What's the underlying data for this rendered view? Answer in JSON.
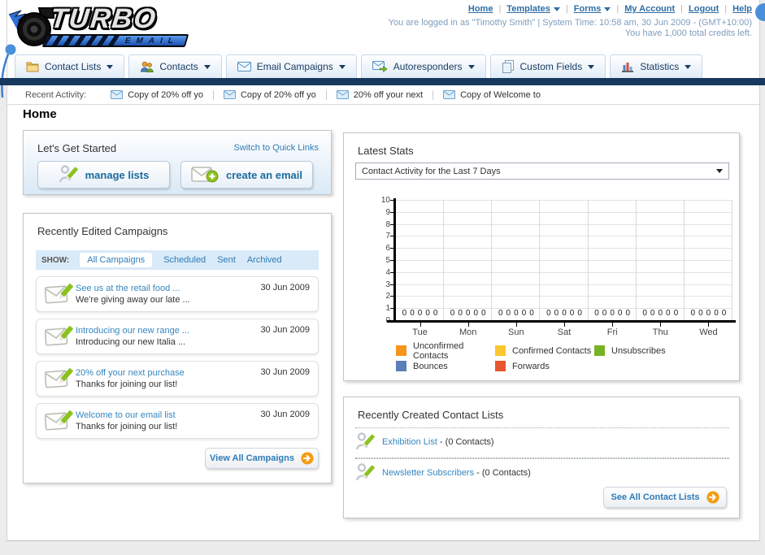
{
  "header": {
    "logo_title": "TURBO",
    "logo_subtitle": "EMAIL",
    "nav_links": [
      {
        "label": "Home",
        "dropdown": false
      },
      {
        "label": "Templates",
        "dropdown": true
      },
      {
        "label": "Forms",
        "dropdown": true
      },
      {
        "label": "My Account",
        "dropdown": false
      },
      {
        "label": "Logout",
        "dropdown": false
      },
      {
        "label": "Help",
        "dropdown": false
      }
    ],
    "login_info": "You are logged in as \"Timothy Smith\" | System Time: 10:58 am, 30 Jun 2009 - (GMT+10:00)",
    "credits_info": "You have 1,000 total credits left."
  },
  "nav_tabs": [
    {
      "label": "Contact Lists",
      "icon": "folder-icon"
    },
    {
      "label": "Contacts",
      "icon": "contacts-icon"
    },
    {
      "label": "Email Campaigns",
      "icon": "envelope-icon"
    },
    {
      "label": "Autoresponders",
      "icon": "envelope-arrow-icon"
    },
    {
      "label": "Custom Fields",
      "icon": "pages-icon"
    },
    {
      "label": "Statistics",
      "icon": "chart-icon"
    }
  ],
  "recent_activity": {
    "label": "Recent Activity:",
    "items": [
      {
        "label": "Copy of 20% off yo"
      },
      {
        "label": "Copy of 20% off yo"
      },
      {
        "label": "20% off your next"
      },
      {
        "label": "Copy of Welcome to"
      }
    ]
  },
  "page": {
    "title": "Home"
  },
  "get_started": {
    "title": "Let's Get Started",
    "switch_link": "Switch to Quick Links",
    "buttons": [
      {
        "label": "manage lists",
        "icon": "pencil-user-icon"
      },
      {
        "label": "create an email",
        "icon": "envelope-plus-icon"
      }
    ]
  },
  "campaigns": {
    "title": "Recently Edited Campaigns",
    "show_label": "SHOW:",
    "tabs": [
      {
        "label": "All Campaigns",
        "active": true
      },
      {
        "label": "Scheduled",
        "active": false
      },
      {
        "label": "Sent",
        "active": false
      },
      {
        "label": "Archived",
        "active": false
      }
    ],
    "items": [
      {
        "title": "See us at the retail food ...",
        "subtitle": "We're giving away our late ...",
        "date": "30 Jun 2009"
      },
      {
        "title": "Introducing our new range ...",
        "subtitle": "Introducing our new Italia ...",
        "date": "30 Jun 2009"
      },
      {
        "title": "20% off your next purchase",
        "subtitle": "Thanks for joining our list!",
        "date": "30 Jun 2009"
      },
      {
        "title": "Welcome to our email list",
        "subtitle": "Thanks for joining our list!",
        "date": "30 Jun 2009"
      }
    ],
    "view_all_label": "View All Campaigns"
  },
  "latest_stats": {
    "title": "Latest Stats",
    "selected_option": "Contact Activity for the Last 7 Days"
  },
  "chart_data": {
    "type": "bar",
    "title": "Contact Activity for the Last 7 Days",
    "categories": [
      "Tue",
      "Mon",
      "Sun",
      "Sat",
      "Fri",
      "Thu",
      "Wed"
    ],
    "series": [
      {
        "name": "Unconfirmed Contacts",
        "color": "#f7941d",
        "values": [
          0,
          0,
          0,
          0,
          0,
          0,
          0
        ]
      },
      {
        "name": "Confirmed Contacts",
        "color": "#fdc62f",
        "values": [
          0,
          0,
          0,
          0,
          0,
          0,
          0
        ]
      },
      {
        "name": "Unsubscribes",
        "color": "#77b226",
        "values": [
          0,
          0,
          0,
          0,
          0,
          0,
          0
        ]
      },
      {
        "name": "Bounces",
        "color": "#5b7fb8",
        "values": [
          0,
          0,
          0,
          0,
          0,
          0,
          0
        ]
      },
      {
        "name": "Forwards",
        "color": "#e8552e",
        "values": [
          0,
          0,
          0,
          0,
          0,
          0,
          0
        ]
      }
    ],
    "xlabel": "",
    "ylabel": "",
    "ylim": [
      0,
      10
    ],
    "ytick_step": 1,
    "grid": true,
    "legend_position": "bottom",
    "data_labels": true
  },
  "contact_lists": {
    "title": "Recently Created Contact Lists",
    "items": [
      {
        "name": "Exhibition List",
        "suffix": " - (0 Contacts)"
      },
      {
        "name": "Newsletter Subscribers",
        "suffix": " - (0 Contacts)"
      }
    ],
    "see_all_label": "See All Contact Lists"
  }
}
